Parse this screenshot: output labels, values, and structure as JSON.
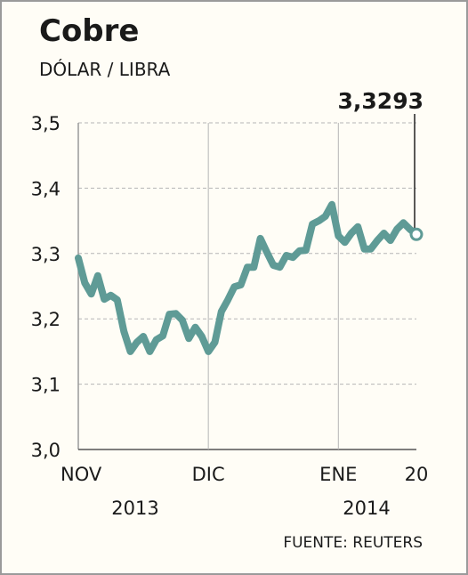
{
  "chart_data": {
    "type": "line",
    "title": "Cobre",
    "subtitle": "DÓLAR / LIBRA",
    "source": "FUENTE: REUTERS",
    "categories": [
      "NOV",
      null,
      null,
      null,
      null,
      null,
      null,
      null,
      null,
      null,
      null,
      null,
      null,
      null,
      null,
      null,
      null,
      null,
      null,
      null,
      "DIC",
      null,
      null,
      null,
      null,
      null,
      null,
      null,
      null,
      null,
      null,
      null,
      null,
      null,
      null,
      null,
      null,
      null,
      null,
      null,
      "ENE",
      null,
      null,
      null,
      null,
      null,
      null,
      null,
      null,
      null,
      null,
      null,
      "20"
    ],
    "years": [
      "2013",
      "2014"
    ],
    "values": [
      3.293,
      3.255,
      3.238,
      3.266,
      3.23,
      3.236,
      3.229,
      3.181,
      3.15,
      3.164,
      3.173,
      3.15,
      3.168,
      3.174,
      3.207,
      3.208,
      3.198,
      3.17,
      3.187,
      3.173,
      3.15,
      3.164,
      3.211,
      3.229,
      3.249,
      3.252,
      3.279,
      3.279,
      3.323,
      3.302,
      3.282,
      3.279,
      3.297,
      3.294,
      3.304,
      3.305,
      3.345,
      3.35,
      3.357,
      3.375,
      3.327,
      3.317,
      3.331,
      3.341,
      3.307,
      3.307,
      3.32,
      3.331,
      3.32,
      3.337,
      3.347,
      3.337,
      3.3293
    ],
    "value_labels": [
      null,
      null,
      null,
      null,
      null,
      null,
      null,
      null,
      null,
      null,
      null,
      null,
      null,
      null,
      null,
      null,
      null,
      null,
      null,
      null,
      null,
      null,
      null,
      null,
      null,
      null,
      null,
      null,
      null,
      null,
      null,
      null,
      null,
      null,
      null,
      null,
      null,
      null,
      null,
      null,
      null,
      null,
      null,
      null,
      null,
      null,
      null,
      null,
      null,
      null,
      null,
      null,
      "3,3293"
    ],
    "color": "#5f9b96",
    "ylim": [
      3.0,
      3.5
    ],
    "yticks": [
      {
        "value": 3.0,
        "label": "3,0"
      },
      {
        "value": 3.1,
        "label": "3,1"
      },
      {
        "value": 3.2,
        "label": "3,2"
      },
      {
        "value": 3.3,
        "label": "3,3"
      },
      {
        "value": 3.4,
        "label": "3,4"
      },
      {
        "value": 3.5,
        "label": "3,5"
      }
    ],
    "grid": true
  }
}
